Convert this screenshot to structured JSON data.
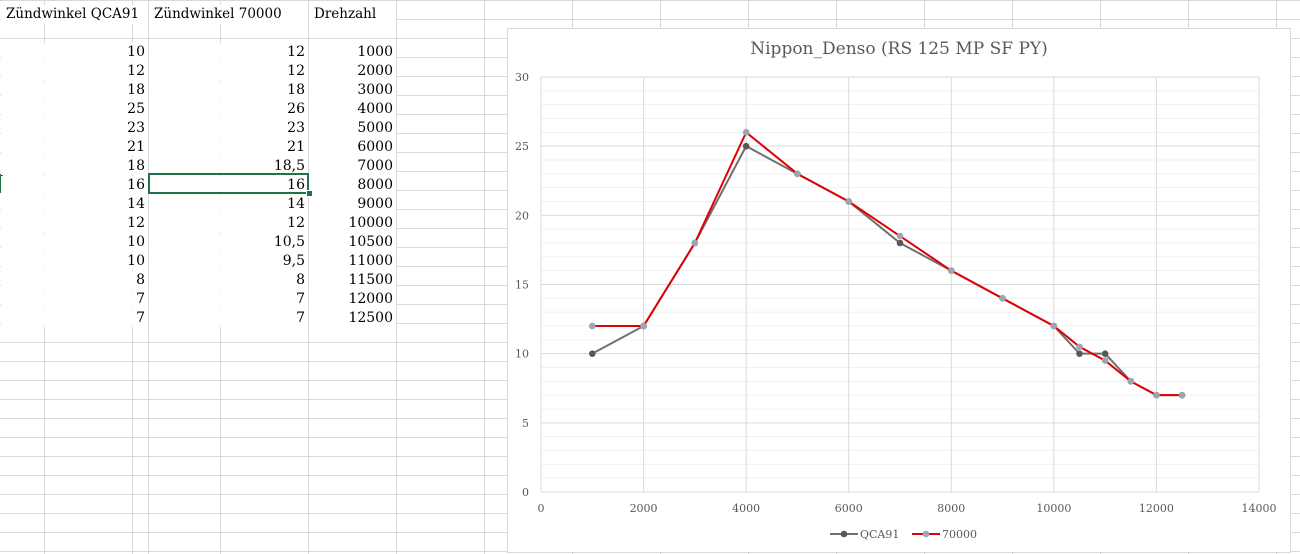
{
  "sheet": {
    "headers": [
      "Zündwinkel QCA91",
      "Zündwinkel 70000",
      "Drehzahl"
    ],
    "rows": [
      [
        "10",
        "12",
        "1000"
      ],
      [
        "12",
        "12",
        "2000"
      ],
      [
        "18",
        "18",
        "3000"
      ],
      [
        "25",
        "26",
        "4000"
      ],
      [
        "23",
        "23",
        "5000"
      ],
      [
        "21",
        "21",
        "6000"
      ],
      [
        "18",
        "18,5",
        "7000"
      ],
      [
        "16",
        "16",
        "8000"
      ],
      [
        "14",
        "14",
        "9000"
      ],
      [
        "12",
        "12",
        "10000"
      ],
      [
        "10",
        "10,5",
        "10500"
      ],
      [
        "10",
        "9,5",
        "11000"
      ],
      [
        "8",
        "8",
        "11500"
      ],
      [
        "7",
        "7",
        "12000"
      ],
      [
        "7",
        "7",
        "12500"
      ]
    ],
    "active_cell_value": "16"
  },
  "chart_data": {
    "type": "line",
    "title": "Nippon_Denso (RS 125 MP SF PY)",
    "xlabel": "",
    "ylabel": "",
    "xlim": [
      0,
      14000
    ],
    "ylim": [
      0,
      30
    ],
    "xticks": [
      0,
      2000,
      4000,
      6000,
      8000,
      10000,
      12000,
      14000
    ],
    "yticks": [
      0,
      5,
      10,
      15,
      20,
      25,
      30
    ],
    "grid": true,
    "legend_position": "bottom",
    "series": [
      {
        "name": "QCA91",
        "color": "#707070",
        "marker_color": "#595959",
        "x": [
          1000,
          2000,
          3000,
          4000,
          5000,
          6000,
          7000,
          8000,
          9000,
          10000,
          10500,
          11000,
          11500,
          12000,
          12500
        ],
        "y": [
          10,
          12,
          18,
          25,
          23,
          21,
          18,
          16,
          14,
          12,
          10,
          10,
          8,
          7,
          7
        ]
      },
      {
        "name": "70000",
        "color": "#e00000",
        "marker_color": "#9aa6b2",
        "x": [
          1000,
          2000,
          3000,
          4000,
          5000,
          6000,
          7000,
          8000,
          9000,
          10000,
          10500,
          11000,
          11500,
          12000,
          12500
        ],
        "y": [
          12,
          12,
          18,
          26,
          23,
          21,
          18.5,
          16,
          14,
          12,
          10.5,
          9.5,
          8,
          7,
          7
        ]
      }
    ]
  }
}
